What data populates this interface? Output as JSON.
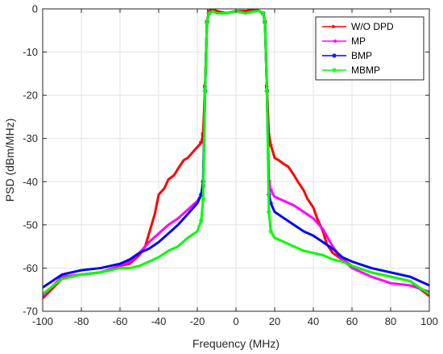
{
  "chart_data": {
    "type": "line",
    "title": "",
    "xlabel": "Frequency (MHz)",
    "ylabel": "PSD (dBm/MHz)",
    "xlim": [
      -100,
      100
    ],
    "ylim": [
      -70,
      0
    ],
    "xticks": [
      -100,
      -80,
      -60,
      -40,
      -20,
      0,
      20,
      40,
      60,
      80,
      100
    ],
    "yticks": [
      0,
      -10,
      -20,
      -30,
      -40,
      -50,
      -60,
      -70
    ],
    "grid": true,
    "legend_position": "top-right",
    "series": [
      {
        "name": "W/O DPD",
        "color": "#ff0000",
        "marker": "triangle-right",
        "x": [
          -100,
          -90,
          -80,
          -70,
          -60,
          -55,
          -50,
          -47,
          -45,
          -42,
          -40,
          -37,
          -35,
          -32,
          -30,
          -27,
          -25,
          -22,
          -20,
          -18,
          -17,
          -16,
          -15,
          -14,
          -12,
          -10,
          -5,
          0,
          5,
          10,
          12,
          14,
          15,
          16,
          17,
          18,
          20,
          22,
          25,
          27,
          30,
          32,
          35,
          37,
          40,
          42,
          45,
          47,
          50,
          55,
          60,
          70,
          80,
          90,
          100
        ],
        "y": [
          -67,
          -62.5,
          -61.5,
          -61,
          -59.5,
          -59,
          -57,
          -55,
          -52,
          -47.5,
          -43,
          -41.5,
          -39.5,
          -38.5,
          -37,
          -35,
          -34.5,
          -33,
          -32,
          -31,
          -29,
          -18,
          -3,
          -0.5,
          0,
          -0.5,
          -1,
          -0.5,
          -0.5,
          0,
          -0.5,
          -1,
          -3,
          -18,
          -29,
          -31.5,
          -34.5,
          -35,
          -36,
          -36.5,
          -38.5,
          -40,
          -42,
          -44,
          -46,
          -48.5,
          -51.5,
          -54.5,
          -56.5,
          -58,
          -59.5,
          -61,
          -62,
          -63,
          -66.5
        ]
      },
      {
        "name": "MP",
        "color": "#ff00ff",
        "marker": "triangle-left",
        "x": [
          -100,
          -90,
          -80,
          -70,
          -60,
          -55,
          -50,
          -45,
          -40,
          -35,
          -30,
          -25,
          -20,
          -18,
          -17,
          -16,
          -15,
          -14,
          -12,
          -10,
          -5,
          0,
          5,
          10,
          12,
          14,
          15,
          16,
          17,
          18,
          20,
          25,
          30,
          35,
          40,
          45,
          50,
          55,
          60,
          70,
          80,
          90,
          100
        ],
        "y": [
          -66.5,
          -62,
          -61.5,
          -61,
          -59.5,
          -58.5,
          -56.5,
          -54,
          -52,
          -50,
          -48.5,
          -46.5,
          -44.5,
          -43,
          -41,
          -19,
          -3,
          -1,
          -0.5,
          -1,
          -1,
          -0.5,
          -1,
          -0.5,
          -0.5,
          -1,
          -3,
          -19,
          -40,
          -42,
          -43.5,
          -44.5,
          -45.5,
          -47,
          -48.5,
          -51,
          -55,
          -58,
          -60,
          -62,
          -63.5,
          -64,
          -65.5
        ]
      },
      {
        "name": "BMP",
        "color": "#0000ff",
        "marker": "asterisk",
        "x": [
          -100,
          -90,
          -80,
          -70,
          -60,
          -55,
          -50,
          -45,
          -40,
          -35,
          -30,
          -25,
          -20,
          -18,
          -17,
          -16,
          -15,
          -14,
          -12,
          -10,
          -5,
          0,
          5,
          10,
          12,
          14,
          15,
          16,
          17,
          18,
          20,
          25,
          30,
          35,
          40,
          45,
          50,
          55,
          60,
          70,
          80,
          90,
          100
        ],
        "y": [
          -64.5,
          -61.5,
          -60.5,
          -60,
          -59,
          -58,
          -56.5,
          -55.5,
          -54,
          -52,
          -50,
          -47.5,
          -45,
          -43,
          -40,
          -19,
          -3,
          -1,
          -0.5,
          -1,
          -1,
          -0.5,
          -1,
          -0.5,
          -0.5,
          -1,
          -3,
          -19,
          -43,
          -45,
          -47,
          -48.5,
          -50,
          -51.5,
          -52.5,
          -54,
          -55.5,
          -57.5,
          -58.5,
          -60,
          -61,
          -62,
          -64
        ]
      },
      {
        "name": "MBMP",
        "color": "#00ff00",
        "marker": "asterisk",
        "x": [
          -100,
          -90,
          -80,
          -70,
          -60,
          -55,
          -50,
          -45,
          -40,
          -35,
          -30,
          -25,
          -20,
          -18,
          -17,
          -16,
          -15,
          -14,
          -12,
          -10,
          -5,
          0,
          5,
          10,
          12,
          14,
          15,
          16,
          17,
          18,
          20,
          25,
          30,
          35,
          40,
          45,
          50,
          55,
          60,
          70,
          80,
          90,
          100
        ],
        "y": [
          -66,
          -62.5,
          -61.5,
          -61,
          -60,
          -60,
          -59.5,
          -58.5,
          -57.5,
          -56,
          -55,
          -53,
          -51.5,
          -49,
          -44,
          -19,
          -3,
          -1,
          -0.5,
          -1,
          -1,
          -0.5,
          -1,
          -0.5,
          -0.5,
          -1,
          -3,
          -19,
          -47,
          -51.5,
          -53,
          -54,
          -55,
          -56,
          -56.5,
          -57,
          -58,
          -58.5,
          -59.5,
          -61,
          -62,
          -63,
          -66
        ]
      }
    ]
  }
}
